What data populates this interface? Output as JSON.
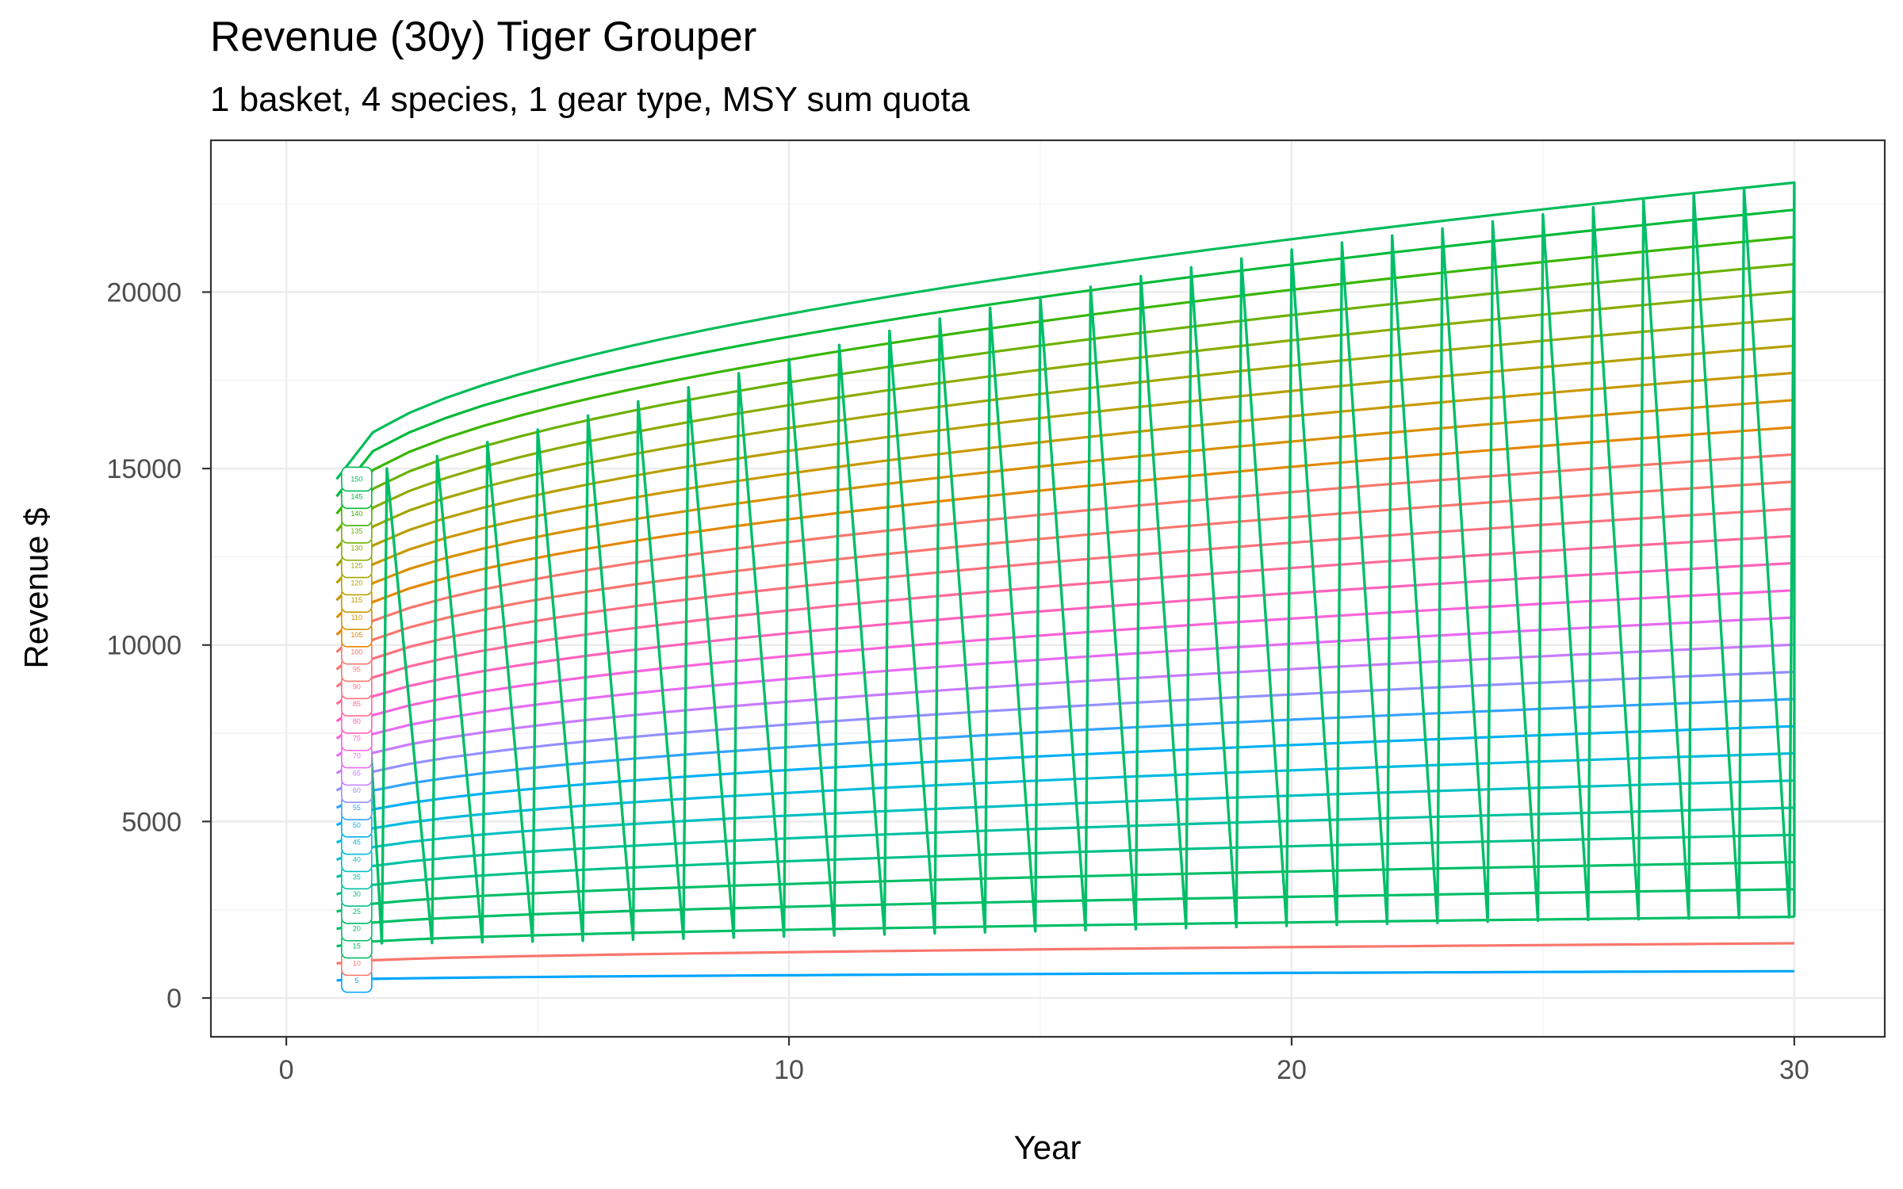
{
  "chart_data": {
    "type": "line",
    "title": "Revenue (30y) Tiger Grouper",
    "subtitle": "1 basket, 4 species, 1 gear type, MSY sum quota",
    "xlabel": "Year",
    "ylabel": "Revenue $",
    "xlim": [
      -1.5,
      31.8
    ],
    "ylim": [
      -1100,
      24300
    ],
    "x_ticks": [
      0,
      10,
      20,
      30
    ],
    "x_minor_ticks": [
      5,
      15,
      25
    ],
    "y_ticks": [
      0,
      5000,
      10000,
      15000,
      20000
    ],
    "y_minor_ticks": [
      2500,
      7500,
      12500,
      17500,
      22500
    ],
    "grid": true,
    "legend": "none",
    "label_x": 1.4,
    "series": [
      {
        "label": "5",
        "color": "#00A5FF",
        "values": [
          {
            "x": 1,
            "y": 500
          },
          {
            "x": 30,
            "y": 760
          }
        ]
      },
      {
        "label": "10",
        "color": "#F8766D",
        "values": [
          {
            "x": 1,
            "y": 980
          },
          {
            "x": 30,
            "y": 1550
          }
        ]
      },
      {
        "label": "15",
        "color": "#00BE67",
        "values": [
          {
            "x": 1,
            "y": 1470
          },
          {
            "x": 30,
            "y": 2300
          }
        ]
      },
      {
        "label": "20",
        "color": "#00BE67",
        "values": [
          {
            "x": 1,
            "y": 1960
          },
          {
            "x": 30,
            "y": 3080
          }
        ]
      },
      {
        "label": "25",
        "color": "#00BE67",
        "values": [
          {
            "x": 1,
            "y": 2450
          },
          {
            "x": 30,
            "y": 3850
          }
        ]
      },
      {
        "label": "30",
        "color": "#00C08B",
        "values": [
          {
            "x": 1,
            "y": 2940
          },
          {
            "x": 30,
            "y": 4620
          }
        ]
      },
      {
        "label": "35",
        "color": "#00C1A3",
        "values": [
          {
            "x": 1,
            "y": 3430
          },
          {
            "x": 30,
            "y": 5390
          }
        ]
      },
      {
        "label": "40",
        "color": "#00BFC4",
        "values": [
          {
            "x": 1,
            "y": 3920
          },
          {
            "x": 30,
            "y": 6160
          }
        ]
      },
      {
        "label": "45",
        "color": "#00BAE0",
        "values": [
          {
            "x": 1,
            "y": 4410
          },
          {
            "x": 30,
            "y": 6930
          }
        ]
      },
      {
        "label": "50",
        "color": "#00B0F6",
        "values": [
          {
            "x": 1,
            "y": 4900
          },
          {
            "x": 30,
            "y": 7700
          }
        ]
      },
      {
        "label": "55",
        "color": "#35A2FF",
        "values": [
          {
            "x": 1,
            "y": 5390
          },
          {
            "x": 30,
            "y": 8470
          }
        ]
      },
      {
        "label": "60",
        "color": "#9590FF",
        "values": [
          {
            "x": 1,
            "y": 5880
          },
          {
            "x": 30,
            "y": 9240
          }
        ]
      },
      {
        "label": "65",
        "color": "#C77CFF",
        "values": [
          {
            "x": 1,
            "y": 6370
          },
          {
            "x": 30,
            "y": 10010
          }
        ]
      },
      {
        "label": "70",
        "color": "#E76BF3",
        "values": [
          {
            "x": 1,
            "y": 6860
          },
          {
            "x": 30,
            "y": 10780
          }
        ]
      },
      {
        "label": "75",
        "color": "#FA62DB",
        "values": [
          {
            "x": 1,
            "y": 7350
          },
          {
            "x": 30,
            "y": 11550
          }
        ]
      },
      {
        "label": "80",
        "color": "#FF62BC",
        "values": [
          {
            "x": 1,
            "y": 7840
          },
          {
            "x": 30,
            "y": 12320
          }
        ]
      },
      {
        "label": "85",
        "color": "#FF6A98",
        "values": [
          {
            "x": 1,
            "y": 8330
          },
          {
            "x": 30,
            "y": 13090
          }
        ]
      },
      {
        "label": "90",
        "color": "#FC717F",
        "values": [
          {
            "x": 1,
            "y": 8820
          },
          {
            "x": 30,
            "y": 13860
          }
        ]
      },
      {
        "label": "95",
        "color": "#F8766D",
        "values": [
          {
            "x": 1,
            "y": 9310
          },
          {
            "x": 30,
            "y": 14630
          }
        ]
      },
      {
        "label": "100",
        "color": "#F8766D",
        "values": [
          {
            "x": 1,
            "y": 9800
          },
          {
            "x": 30,
            "y": 15400
          }
        ]
      },
      {
        "label": "105",
        "color": "#E58700",
        "values": [
          {
            "x": 1,
            "y": 10290
          },
          {
            "x": 30,
            "y": 16170
          }
        ]
      },
      {
        "label": "110",
        "color": "#D89000",
        "values": [
          {
            "x": 1,
            "y": 10780
          },
          {
            "x": 30,
            "y": 16940
          }
        ]
      },
      {
        "label": "115",
        "color": "#C99800",
        "values": [
          {
            "x": 1,
            "y": 11270
          },
          {
            "x": 30,
            "y": 17710
          }
        ]
      },
      {
        "label": "120",
        "color": "#B79F00",
        "values": [
          {
            "x": 1,
            "y": 11760
          },
          {
            "x": 30,
            "y": 18480
          }
        ]
      },
      {
        "label": "125",
        "color": "#A3A500",
        "values": [
          {
            "x": 1,
            "y": 12250
          },
          {
            "x": 30,
            "y": 19250
          }
        ]
      },
      {
        "label": "130",
        "color": "#8BAB00",
        "values": [
          {
            "x": 1,
            "y": 12740
          },
          {
            "x": 30,
            "y": 20020
          }
        ]
      },
      {
        "label": "135",
        "color": "#6BB100",
        "values": [
          {
            "x": 1,
            "y": 13230
          },
          {
            "x": 30,
            "y": 20790
          }
        ]
      },
      {
        "label": "140",
        "color": "#39B600",
        "values": [
          {
            "x": 1,
            "y": 13720
          },
          {
            "x": 30,
            "y": 21560
          }
        ]
      },
      {
        "label": "145",
        "color": "#00BA38",
        "values": [
          {
            "x": 1,
            "y": 14210
          },
          {
            "x": 30,
            "y": 22330
          }
        ]
      },
      {
        "label": "150",
        "color": "#00BC59",
        "values": [
          {
            "x": 1,
            "y": 14700
          },
          {
            "x": 30,
            "y": 23100
          }
        ]
      }
    ],
    "zigzag": {
      "color": "#00BE67",
      "points": [
        {
          "x": 1.4,
          "y": 14300
        },
        {
          "x": 1.9,
          "y": 1550
        },
        {
          "x": 2,
          "y": 15000
        },
        {
          "x": 2.9,
          "y": 1560
        },
        {
          "x": 3,
          "y": 15350
        },
        {
          "x": 3.9,
          "y": 1580
        },
        {
          "x": 4,
          "y": 15750
        },
        {
          "x": 4.9,
          "y": 1600
        },
        {
          "x": 5,
          "y": 16100
        },
        {
          "x": 5.9,
          "y": 1620
        },
        {
          "x": 6,
          "y": 16500
        },
        {
          "x": 6.9,
          "y": 1650
        },
        {
          "x": 7,
          "y": 16900
        },
        {
          "x": 7.9,
          "y": 1680
        },
        {
          "x": 8,
          "y": 17300
        },
        {
          "x": 8.9,
          "y": 1710
        },
        {
          "x": 9,
          "y": 17700
        },
        {
          "x": 9.9,
          "y": 1740
        },
        {
          "x": 10,
          "y": 18100
        },
        {
          "x": 10.9,
          "y": 1770
        },
        {
          "x": 11,
          "y": 18500
        },
        {
          "x": 11.9,
          "y": 1800
        },
        {
          "x": 12,
          "y": 18900
        },
        {
          "x": 12.9,
          "y": 1830
        },
        {
          "x": 13,
          "y": 19250
        },
        {
          "x": 13.9,
          "y": 1860
        },
        {
          "x": 14,
          "y": 19550
        },
        {
          "x": 14.9,
          "y": 1890
        },
        {
          "x": 15,
          "y": 19850
        },
        {
          "x": 15.9,
          "y": 1920
        },
        {
          "x": 16,
          "y": 20150
        },
        {
          "x": 16.9,
          "y": 1950
        },
        {
          "x": 17,
          "y": 20450
        },
        {
          "x": 17.9,
          "y": 1980
        },
        {
          "x": 18,
          "y": 20700
        },
        {
          "x": 18.9,
          "y": 2010
        },
        {
          "x": 19,
          "y": 20950
        },
        {
          "x": 19.9,
          "y": 2040
        },
        {
          "x": 20,
          "y": 21200
        },
        {
          "x": 20.9,
          "y": 2070
        },
        {
          "x": 21,
          "y": 21400
        },
        {
          "x": 21.9,
          "y": 2100
        },
        {
          "x": 22,
          "y": 21600
        },
        {
          "x": 22.9,
          "y": 2130
        },
        {
          "x": 23,
          "y": 21800
        },
        {
          "x": 23.9,
          "y": 2160
        },
        {
          "x": 24,
          "y": 22000
        },
        {
          "x": 24.9,
          "y": 2190
        },
        {
          "x": 25,
          "y": 22200
        },
        {
          "x": 25.9,
          "y": 2210
        },
        {
          "x": 26,
          "y": 22400
        },
        {
          "x": 26.9,
          "y": 2230
        },
        {
          "x": 27,
          "y": 22600
        },
        {
          "x": 27.9,
          "y": 2250
        },
        {
          "x": 28,
          "y": 22800
        },
        {
          "x": 28.9,
          "y": 2270
        },
        {
          "x": 29,
          "y": 22950
        },
        {
          "x": 29.9,
          "y": 2290
        },
        {
          "x": 30,
          "y": 23100
        },
        {
          "x": 30,
          "y": 2300
        }
      ]
    }
  }
}
